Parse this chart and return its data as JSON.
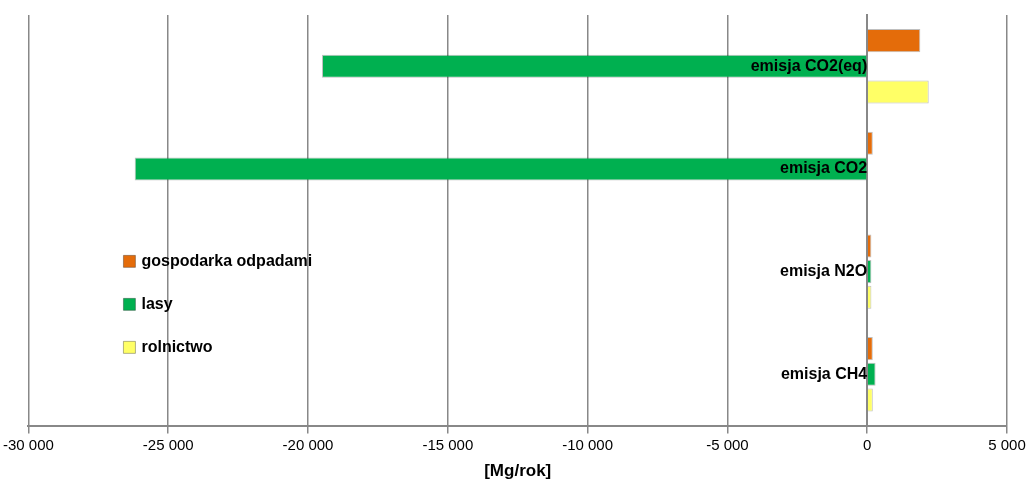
{
  "chart_data": {
    "type": "bar",
    "orientation": "horizontal",
    "xlabel": "[Mg/rok]",
    "categories": [
      "emisja CO2(eq)",
      "emisja CO2",
      "emisja N2O",
      "emisja CH4"
    ],
    "series": [
      {
        "name": "gospodarka odpadami",
        "color": "#e46c0a",
        "values": [
          1900,
          200,
          150,
          200
        ]
      },
      {
        "name": "lasy",
        "color": "#00b050",
        "values": [
          -19500,
          -26200,
          150,
          300
        ]
      },
      {
        "name": "rolnictwo",
        "color": "#ffff66",
        "values": [
          2200,
          null,
          150,
          200
        ]
      }
    ],
    "xlim": [
      -30000,
      5000
    ],
    "xticks": [
      {
        "value": -30000,
        "label": "-30 000"
      },
      {
        "value": -25000,
        "label": "-25 000"
      },
      {
        "value": -20000,
        "label": "-20 000"
      },
      {
        "value": -15000,
        "label": "-15 000"
      },
      {
        "value": -10000,
        "label": "-10 000"
      },
      {
        "value": -5000,
        "label": "-5 000"
      },
      0,
      {
        "value": 5000,
        "label": "5 000"
      }
    ],
    "grid": "x",
    "legend": "left"
  }
}
